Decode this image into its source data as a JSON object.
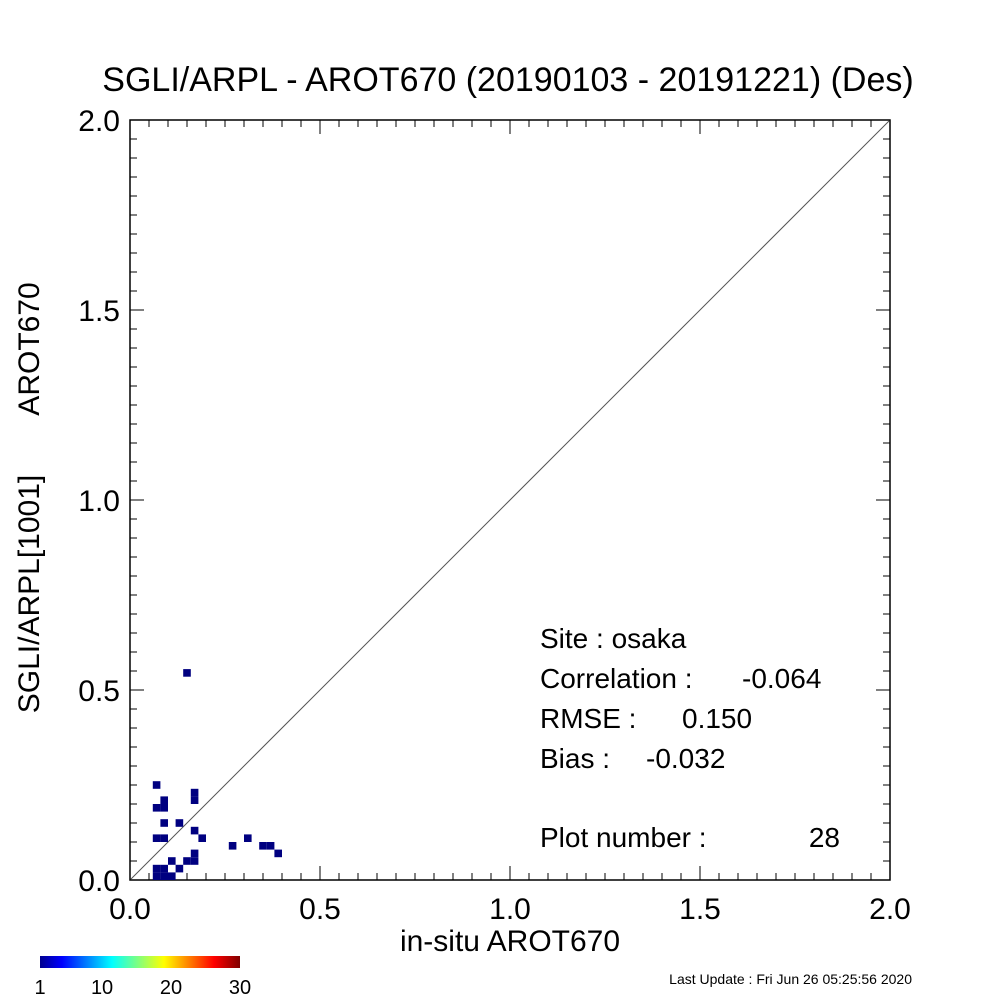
{
  "chart_data": {
    "type": "heatmap",
    "title": "SGLI/ARPL - AROT670 (20190103 - 20191221) (Des)",
    "xlabel": "in-situ AROT670",
    "ylabel_left": "SGLI/ARPL[1001]",
    "ylabel_right": "AROT670",
    "xlim": [
      0.0,
      2.0
    ],
    "ylim": [
      0.0,
      2.0
    ],
    "x_ticks": [
      "0.0",
      "0.5",
      "1.0",
      "1.5",
      "2.0"
    ],
    "y_ticks": [
      "0.0",
      "0.5",
      "1.0",
      "1.5",
      "2.0"
    ],
    "x_tick_values": [
      0.0,
      0.5,
      1.0,
      1.5,
      2.0
    ],
    "y_tick_values": [
      0.0,
      0.5,
      1.0,
      1.5,
      2.0
    ],
    "reference_line": "1:1",
    "bin_size": 0.02,
    "points": [
      {
        "x": 0.15,
        "y": 0.545,
        "count": 1
      },
      {
        "x": 0.07,
        "y": 0.25,
        "count": 1
      },
      {
        "x": 0.17,
        "y": 0.23,
        "count": 1
      },
      {
        "x": 0.17,
        "y": 0.21,
        "count": 1
      },
      {
        "x": 0.07,
        "y": 0.19,
        "count": 1
      },
      {
        "x": 0.09,
        "y": 0.21,
        "count": 1
      },
      {
        "x": 0.09,
        "y": 0.19,
        "count": 1
      },
      {
        "x": 0.09,
        "y": 0.15,
        "count": 1
      },
      {
        "x": 0.13,
        "y": 0.15,
        "count": 1
      },
      {
        "x": 0.17,
        "y": 0.13,
        "count": 1
      },
      {
        "x": 0.07,
        "y": 0.11,
        "count": 1
      },
      {
        "x": 0.09,
        "y": 0.11,
        "count": 1
      },
      {
        "x": 0.19,
        "y": 0.11,
        "count": 1
      },
      {
        "x": 0.31,
        "y": 0.11,
        "count": 1
      },
      {
        "x": 0.27,
        "y": 0.09,
        "count": 1
      },
      {
        "x": 0.35,
        "y": 0.09,
        "count": 1
      },
      {
        "x": 0.37,
        "y": 0.09,
        "count": 1
      },
      {
        "x": 0.39,
        "y": 0.07,
        "count": 1
      },
      {
        "x": 0.17,
        "y": 0.07,
        "count": 1
      },
      {
        "x": 0.17,
        "y": 0.05,
        "count": 1
      },
      {
        "x": 0.15,
        "y": 0.05,
        "count": 1
      },
      {
        "x": 0.11,
        "y": 0.05,
        "count": 1
      },
      {
        "x": 0.13,
        "y": 0.03,
        "count": 1
      },
      {
        "x": 0.07,
        "y": 0.03,
        "count": 1
      },
      {
        "x": 0.09,
        "y": 0.03,
        "count": 1
      },
      {
        "x": 0.07,
        "y": 0.01,
        "count": 1
      },
      {
        "x": 0.09,
        "y": 0.01,
        "count": 1
      },
      {
        "x": 0.11,
        "y": 0.01,
        "count": 1
      }
    ],
    "colorbar": {
      "min": 1,
      "max": 30,
      "tick_labels": [
        "1",
        "10",
        "20",
        "30"
      ],
      "tick_values": [
        1,
        10,
        20,
        30
      ],
      "colormap": "jet"
    },
    "point_color": "#000080"
  },
  "stats": {
    "site_label": "Site : osaka",
    "correlation_label": "Correlation :",
    "correlation_value": "-0.064",
    "rmse_label": "RMSE :",
    "rmse_value": "0.150",
    "bias_label": "Bias :",
    "bias_value": "-0.032",
    "plot_number_label": "Plot number :",
    "plot_number_value": "28"
  },
  "footer": {
    "last_update": "Last Update : Fri Jun 26 05:25:56 2020"
  }
}
